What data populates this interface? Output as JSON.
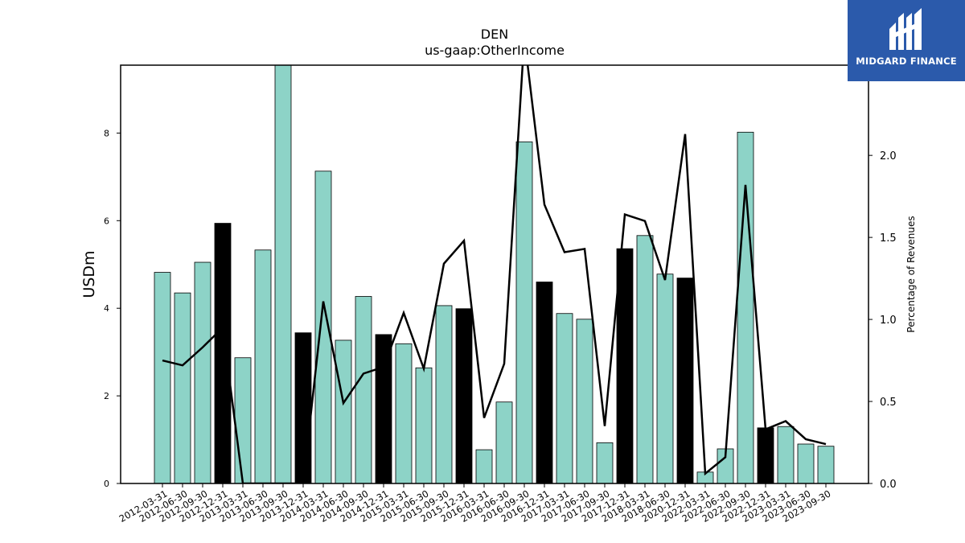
{
  "chart_data": {
    "type": "bar",
    "title": "DEN",
    "subtitle": "us-gaap:OtherIncome",
    "ylabel": "USDm",
    "y2label": "Percentage of Revenues",
    "ylim": [
      0,
      9.55
    ],
    "y2lim": [
      0,
      2.55
    ],
    "yticks": [
      0,
      2,
      4,
      6,
      8
    ],
    "y2ticks": [
      "0.0",
      "0.5",
      "1.0",
      "1.5",
      "2.0"
    ],
    "bar_color": "#8dd3c7",
    "q4_bar_color": "#000000",
    "line_color": "#000000",
    "categories": [
      "2012-03-31",
      "2012-06-30",
      "2012-09-30",
      "2012-12-31",
      "2013-03-31",
      "2013-06-30",
      "2013-09-30",
      "2013-12-31",
      "2014-03-31",
      "2014-06-30",
      "2014-09-30",
      "2014-12-31",
      "2015-03-31",
      "2015-06-30",
      "2015-09-30",
      "2015-12-31",
      "2016-03-31",
      "2016-06-30",
      "2016-09-30",
      "2016-12-31",
      "2017-03-31",
      "2017-06-30",
      "2017-09-30",
      "2017-12-31",
      "2018-03-31",
      "2018-06-30",
      "2020-12-31",
      "2022-03-31",
      "2022-06-30",
      "2022-09-30",
      "2022-12-31",
      "2023-03-31",
      "2023-06-30",
      "2023-09-30"
    ],
    "values": [
      4.82,
      4.35,
      5.05,
      5.94,
      2.87,
      5.33,
      9.6,
      3.44,
      7.13,
      3.27,
      4.27,
      3.4,
      3.19,
      2.64,
      4.06,
      3.99,
      0.77,
      1.86,
      7.8,
      4.6,
      3.88,
      3.75,
      0.93,
      5.36,
      5.66,
      4.78,
      4.69,
      0.26,
      0.79,
      8.02,
      1.27,
      1.3,
      0.9,
      0.85
    ],
    "q4_flags": [
      false,
      false,
      false,
      true,
      false,
      false,
      false,
      true,
      false,
      false,
      false,
      true,
      false,
      false,
      false,
      true,
      false,
      false,
      false,
      true,
      false,
      false,
      false,
      true,
      false,
      false,
      true,
      false,
      false,
      false,
      true,
      false,
      false,
      false
    ],
    "pct_of_revenues": [
      0.75,
      0.72,
      0.83,
      0.95,
      0.0,
      0.0,
      0.0,
      0.0,
      1.11,
      0.49,
      0.67,
      0.71,
      1.04,
      0.7,
      1.34,
      1.48,
      0.4,
      0.73,
      2.72,
      1.7,
      1.41,
      1.43,
      0.35,
      1.64,
      1.6,
      1.24,
      2.13,
      0.06,
      0.16,
      1.82,
      0.33,
      0.38,
      0.27,
      0.24
    ]
  },
  "logo": {
    "text": "MIDGARD FINANCE",
    "bg_color": "#2b5aab",
    "icon": "midgard-logo-icon"
  }
}
